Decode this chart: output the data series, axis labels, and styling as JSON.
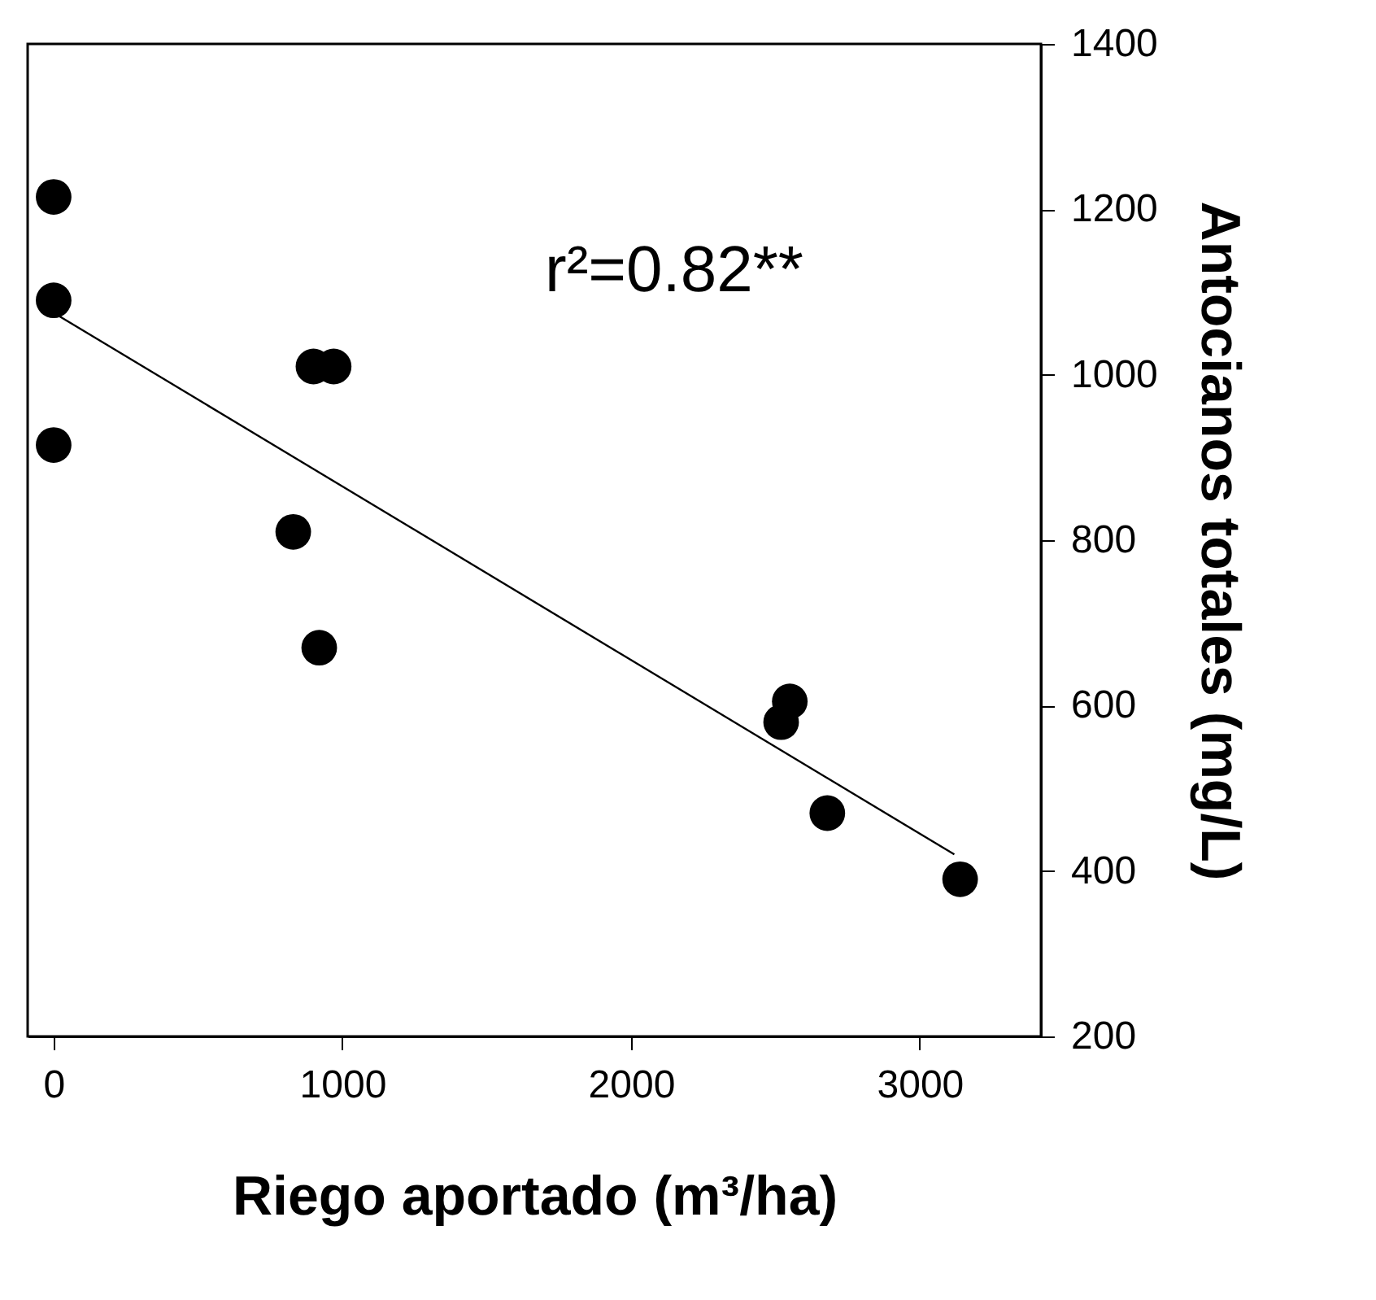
{
  "chart_data": {
    "type": "scatter",
    "xlabel": "Riego aportado (m³/ha)",
    "ylabel": "Antocianos totales (mg/L)",
    "annotations": [
      "r²=0.82**"
    ],
    "xlim": [
      -90,
      3420
    ],
    "xticks": [
      0,
      1000,
      2000,
      3000
    ],
    "ylim": [
      200,
      1400
    ],
    "yticks": [
      200,
      400,
      600,
      800,
      1000,
      1200,
      1400
    ],
    "grid": false,
    "marker": "circle",
    "series": [
      {
        "color": "#000000",
        "x": [
          0,
          0,
          0,
          900,
          970,
          830,
          920,
          2550,
          2520,
          2680,
          3140
        ],
        "values": [
          1215,
          1090,
          915,
          1010,
          1010,
          810,
          670,
          605,
          580,
          470,
          390
        ]
      },
      {
        "type": "line",
        "color": "#000000",
        "line_style": "solid",
        "marker": "none",
        "x": [
          0,
          3120
        ],
        "values": [
          1075,
          420
        ]
      }
    ]
  }
}
